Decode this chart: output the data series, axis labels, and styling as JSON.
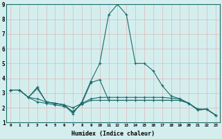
{
  "xlabel": "Humidex (Indice chaleur)",
  "bg_color": "#d4eeee",
  "grid_color": "#dbb8b8",
  "line_color": "#1a6b6b",
  "xlim": [
    -0.5,
    23.5
  ],
  "ylim": [
    1,
    9
  ],
  "xticks": [
    0,
    1,
    2,
    3,
    4,
    5,
    6,
    7,
    8,
    9,
    10,
    11,
    12,
    13,
    14,
    15,
    16,
    17,
    18,
    19,
    20,
    21,
    22,
    23
  ],
  "yticks": [
    1,
    2,
    3,
    4,
    5,
    6,
    7,
    8,
    9
  ],
  "lines": [
    {
      "x": [
        0,
        1,
        2,
        3,
        4,
        5,
        6,
        7,
        8,
        9,
        10,
        11,
        12,
        13,
        14,
        15,
        16,
        17,
        18,
        19,
        20,
        21,
        22,
        23
      ],
      "y": [
        3.2,
        3.2,
        2.7,
        3.3,
        2.4,
        2.3,
        2.2,
        1.6,
        2.4,
        3.8,
        5.0,
        8.3,
        9.0,
        8.3,
        5.0,
        5.0,
        4.5,
        3.5,
        2.8,
        2.6,
        2.3,
        1.9,
        1.9,
        1.5
      ]
    },
    {
      "x": [
        0,
        1,
        2,
        3,
        4,
        5,
        6,
        7,
        8,
        9,
        10,
        11,
        12,
        13,
        14,
        15,
        16,
        17,
        18,
        19,
        20,
        21,
        22,
        23
      ],
      "y": [
        3.2,
        3.2,
        2.7,
        2.6,
        2.4,
        2.3,
        2.2,
        2.0,
        2.3,
        2.6,
        2.7,
        2.7,
        2.7,
        2.7,
        2.7,
        2.7,
        2.7,
        2.7,
        2.65,
        2.6,
        2.3,
        1.9,
        1.9,
        1.5
      ]
    },
    {
      "x": [
        0,
        1,
        2,
        3,
        4,
        5,
        6,
        7,
        8,
        9,
        10,
        11,
        12,
        13,
        14,
        15,
        16,
        17,
        18,
        19,
        20,
        21,
        22,
        23
      ],
      "y": [
        3.2,
        3.2,
        2.7,
        2.4,
        2.3,
        2.2,
        2.1,
        1.75,
        2.25,
        2.5,
        2.5,
        2.5,
        2.5,
        2.5,
        2.5,
        2.5,
        2.5,
        2.5,
        2.5,
        2.5,
        2.3,
        1.85,
        1.9,
        1.5
      ]
    },
    {
      "x": [
        0,
        1,
        2,
        3,
        4,
        5,
        6,
        7,
        8,
        9,
        10,
        11,
        12,
        13,
        14,
        15,
        16,
        17,
        18,
        19,
        20,
        21,
        22,
        23
      ],
      "y": [
        3.2,
        3.2,
        2.7,
        3.4,
        2.4,
        2.3,
        2.2,
        1.7,
        2.3,
        3.7,
        3.9,
        2.5,
        2.5,
        2.5,
        2.5,
        2.5,
        2.5,
        2.5,
        2.5,
        2.5,
        2.3,
        1.85,
        1.9,
        1.5
      ]
    }
  ]
}
